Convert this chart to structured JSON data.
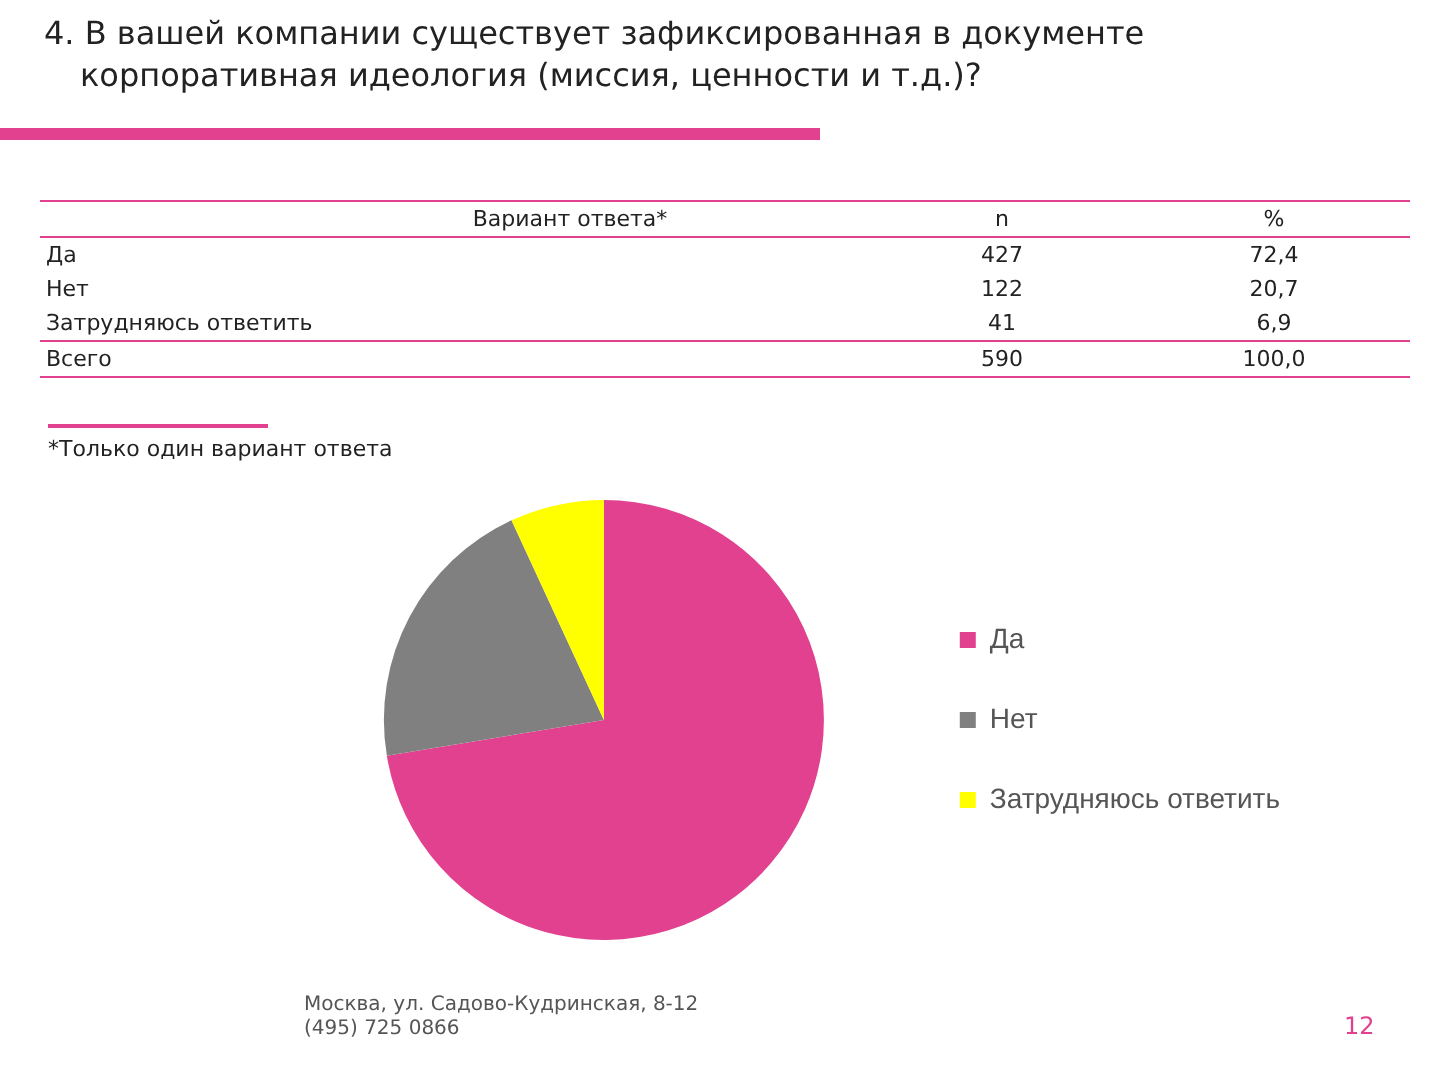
{
  "chart_data": {
    "type": "pie",
    "title": "4. В вашей компании существует зафиксированная в документе корпоративная идеология (миссия, ценности и т.д.)?",
    "categories": [
      "Да",
      "Нет",
      "Затрудняюсь ответить"
    ],
    "values": [
      72.4,
      20.7,
      6.9
    ],
    "totals": [
      "590",
      "100,0"
    ],
    "colors": [
      "#e2418f",
      "#808080",
      "#ffff00"
    ],
    "legend": "right",
    "annotations": [
      "Вариант ответа*",
      "n",
      "%",
      "Всего",
      "*Только один вариант ответа",
      "Москва, ул. Садово-Кудринская, 8-12",
      "(495) 725 0866",
      "12",
      "427",
      "122",
      "41",
      "72,4",
      "20,7",
      "6,9"
    ]
  }
}
